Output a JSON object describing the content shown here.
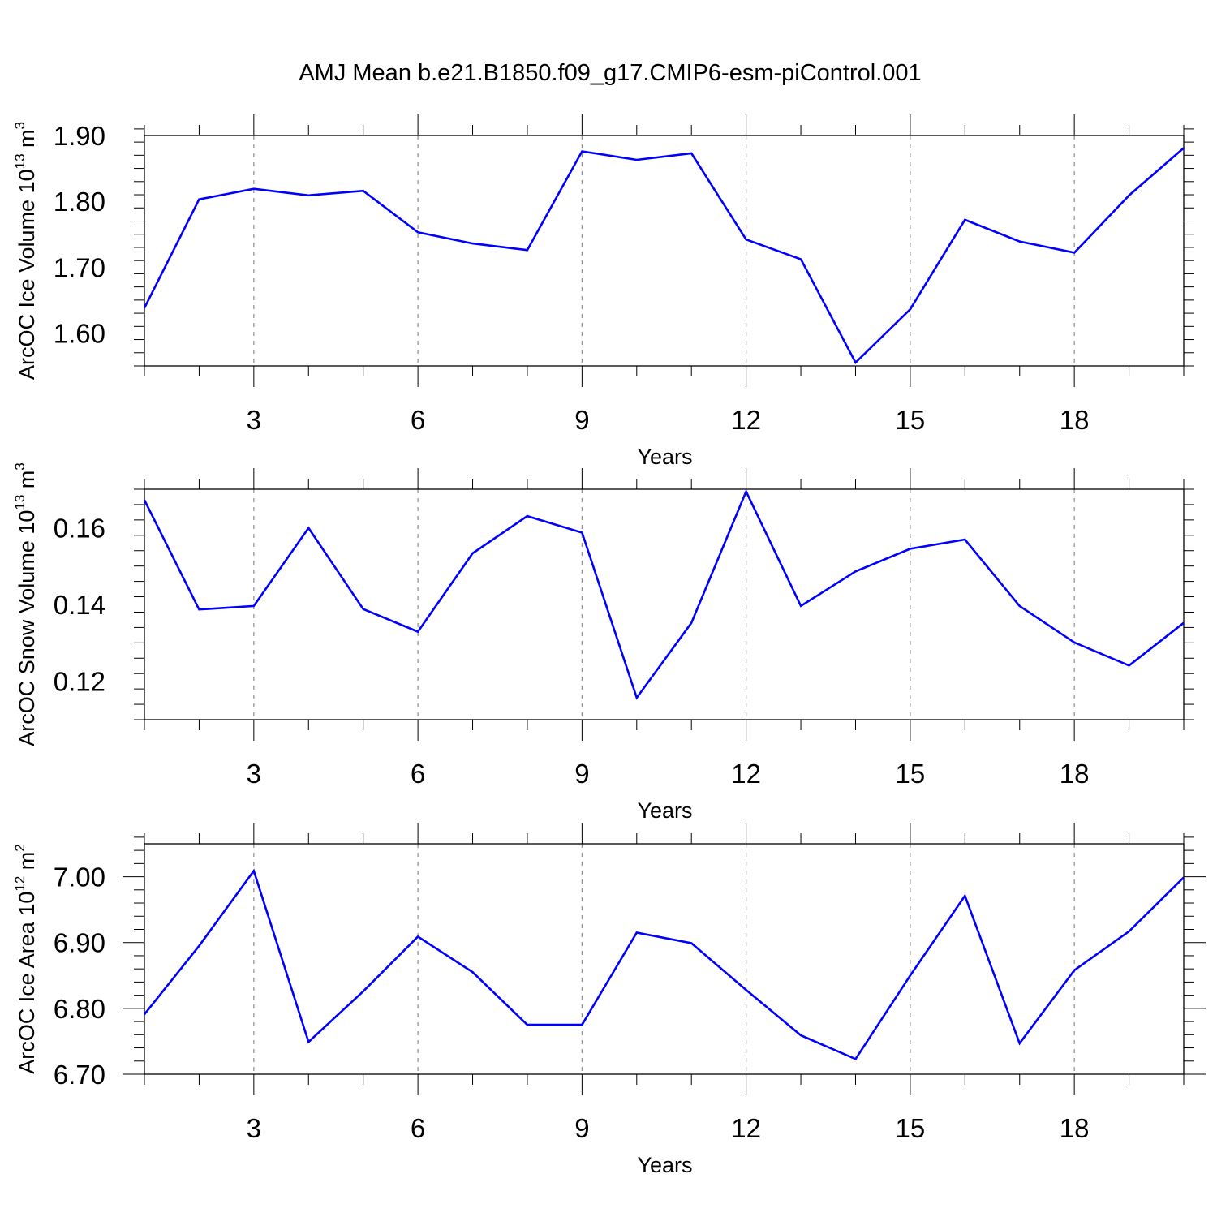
{
  "title": "AMJ Mean b.e21.B1850.f09_g17.CMIP6-esm-piControl.001",
  "line_color": "#0000ff",
  "chart_data": [
    {
      "type": "line",
      "ylabel": {
        "text": "ArcOC Ice Volume 10",
        "exp": "13",
        "unit": " m",
        "unit_exp": "3"
      },
      "xlabel": "Years",
      "xlim": [
        1,
        20
      ],
      "ylim": [
        1.55,
        1.9
      ],
      "x_ticks": [
        3,
        6,
        9,
        12,
        15,
        18
      ],
      "x_tick_labels": [
        "3",
        "6",
        "9",
        "12",
        "15",
        "18"
      ],
      "y_ticks": [
        1.6,
        1.7,
        1.8,
        1.9
      ],
      "y_tick_labels": [
        "1.60",
        "1.70",
        "1.80",
        "1.90"
      ],
      "grid": "vertical dashed at x ticks",
      "x": [
        1,
        2,
        3,
        4,
        5,
        6,
        7,
        8,
        9,
        10,
        11,
        12,
        13,
        14,
        15,
        16,
        17,
        18,
        19,
        20
      ],
      "y": [
        1.638,
        1.803,
        1.819,
        1.809,
        1.816,
        1.753,
        1.736,
        1.726,
        1.876,
        1.863,
        1.873,
        1.742,
        1.712,
        1.555,
        1.636,
        1.772,
        1.739,
        1.722,
        1.809,
        1.881
      ]
    },
    {
      "type": "line",
      "ylabel": {
        "text": "ArcOC Snow Volume 10",
        "exp": "13",
        "unit": " m",
        "unit_exp": "3"
      },
      "xlabel": "Years",
      "xlim": [
        1,
        20
      ],
      "ylim": [
        0.11,
        0.17
      ],
      "x_ticks": [
        3,
        6,
        9,
        12,
        15,
        18
      ],
      "x_tick_labels": [
        "3",
        "6",
        "9",
        "12",
        "15",
        "18"
      ],
      "y_ticks": [
        0.12,
        0.14,
        0.16
      ],
      "y_tick_labels": [
        "0.12",
        "0.14",
        "0.16"
      ],
      "grid": "vertical dashed at x ticks",
      "x": [
        1,
        2,
        3,
        4,
        5,
        6,
        7,
        8,
        9,
        10,
        11,
        12,
        13,
        14,
        15,
        16,
        17,
        18,
        19,
        20
      ],
      "y": [
        0.1672,
        0.1387,
        0.1396,
        0.1599,
        0.1388,
        0.1329,
        0.1533,
        0.163,
        0.1587,
        0.1157,
        0.1352,
        0.1694,
        0.1396,
        0.1486,
        0.1545,
        0.1569,
        0.1396,
        0.1301,
        0.1241,
        0.1352
      ]
    },
    {
      "type": "line",
      "ylabel": {
        "text": "ArcOC Ice Area 10",
        "exp": "12",
        "unit": " m",
        "unit_exp": "2"
      },
      "xlabel": "Years",
      "xlim": [
        1,
        20
      ],
      "ylim": [
        6.7,
        7.05
      ],
      "x_ticks": [
        3,
        6,
        9,
        12,
        15,
        18
      ],
      "x_tick_labels": [
        "3",
        "6",
        "9",
        "12",
        "15",
        "18"
      ],
      "y_ticks": [
        6.7,
        6.8,
        6.9,
        7.0
      ],
      "y_tick_labels": [
        "6.70",
        "6.80",
        "6.90",
        "7.00"
      ],
      "grid": "vertical dashed at x ticks",
      "x": [
        1,
        2,
        3,
        4,
        5,
        6,
        7,
        8,
        9,
        10,
        11,
        12,
        13,
        14,
        15,
        16,
        17,
        18,
        19,
        20
      ],
      "y": [
        6.791,
        6.895,
        7.009,
        6.749,
        6.826,
        6.909,
        6.855,
        6.775,
        6.775,
        6.915,
        6.899,
        6.828,
        6.759,
        6.723,
        6.85,
        6.971,
        6.747,
        6.858,
        6.917,
        6.999
      ]
    }
  ]
}
